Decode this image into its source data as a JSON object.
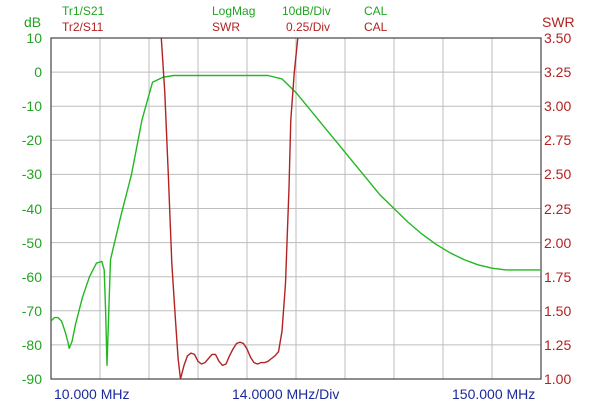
{
  "header": {
    "trace1": "Tr1/S21",
    "trace2": "Tr2/S11",
    "format1": "LogMag",
    "format2": "SWR",
    "scale1": "10dB/Div",
    "scale2": "0.25/Div",
    "cal1": "CAL",
    "cal2": "CAL"
  },
  "colors": {
    "s21": "#22b822",
    "swr": "#b22222",
    "grid": "#bdbdbd",
    "frame": "#444444",
    "freq_text": "#1a2a9a"
  },
  "chart_data": {
    "type": "line",
    "x_axis": {
      "start_label": "10.000 MHz",
      "center_label": "14.0000 MHz/Div",
      "stop_label": "150.000 MHz",
      "start_mhz": 10,
      "stop_mhz": 150,
      "divisions": 10
    },
    "left_axis": {
      "label": "dB",
      "ticks": [
        "10",
        "0",
        "-10",
        "-20",
        "-30",
        "-40",
        "-50",
        "-60",
        "-70",
        "-80",
        "-90"
      ],
      "ylim": [
        -90,
        10
      ]
    },
    "right_axis": {
      "label": "SWR",
      "ticks": [
        "3.50",
        "3.25",
        "3.00",
        "2.75",
        "2.50",
        "2.25",
        "2.00",
        "1.75",
        "1.50",
        "1.25",
        "1.00"
      ],
      "ylim": [
        1.0,
        3.5
      ]
    },
    "grid": true,
    "series": [
      {
        "name": "Tr1/S21",
        "axis": "left",
        "x": [
          10,
          11,
          12,
          13,
          14,
          14.8,
          15.2,
          15.6,
          16,
          17,
          19,
          21,
          23,
          24.5,
          25.2,
          25.6,
          26,
          27,
          30,
          33,
          36,
          39,
          42,
          45,
          48,
          52,
          56,
          60,
          64,
          68,
          72,
          76,
          80,
          84,
          88,
          92,
          96,
          100,
          104,
          108,
          112,
          116,
          120,
          124,
          128,
          132,
          136,
          140,
          144,
          148,
          150
        ],
        "y": [
          -73,
          -72,
          -72,
          -73,
          -76,
          -79,
          -81,
          -80,
          -79,
          -74,
          -66,
          -60,
          -56,
          -55.5,
          -58,
          -70,
          -86,
          -55,
          -42,
          -30,
          -14,
          -3,
          -1.5,
          -1,
          -1,
          -1,
          -1,
          -1,
          -1,
          -1,
          -1,
          -2,
          -6,
          -11,
          -16,
          -21,
          -26,
          -31,
          -36,
          -40,
          -44,
          -47.5,
          -50.5,
          -53,
          -55,
          -56.5,
          -57.5,
          -58,
          -58,
          -58,
          -58
        ]
      },
      {
        "name": "Tr2/S11",
        "axis": "right",
        "x": [
          41.5,
          42.5,
          43.5,
          44.5,
          45.5,
          46.3,
          47,
          48,
          49,
          50,
          51,
          52,
          53,
          54,
          55,
          56,
          57,
          58,
          59,
          60,
          61,
          62,
          63,
          64,
          65,
          66,
          67,
          68,
          69,
          70,
          71,
          72,
          73,
          74,
          75,
          76,
          77,
          78,
          78.5,
          79.5,
          80.5
        ],
        "y": [
          3.5,
          3.1,
          2.5,
          1.85,
          1.45,
          1.15,
          1.0,
          1.1,
          1.17,
          1.19,
          1.18,
          1.13,
          1.11,
          1.12,
          1.15,
          1.18,
          1.18,
          1.13,
          1.1,
          1.11,
          1.17,
          1.22,
          1.26,
          1.27,
          1.26,
          1.22,
          1.16,
          1.12,
          1.11,
          1.12,
          1.12,
          1.13,
          1.15,
          1.17,
          1.2,
          1.35,
          1.7,
          2.4,
          2.9,
          3.25,
          3.5
        ]
      }
    ]
  }
}
